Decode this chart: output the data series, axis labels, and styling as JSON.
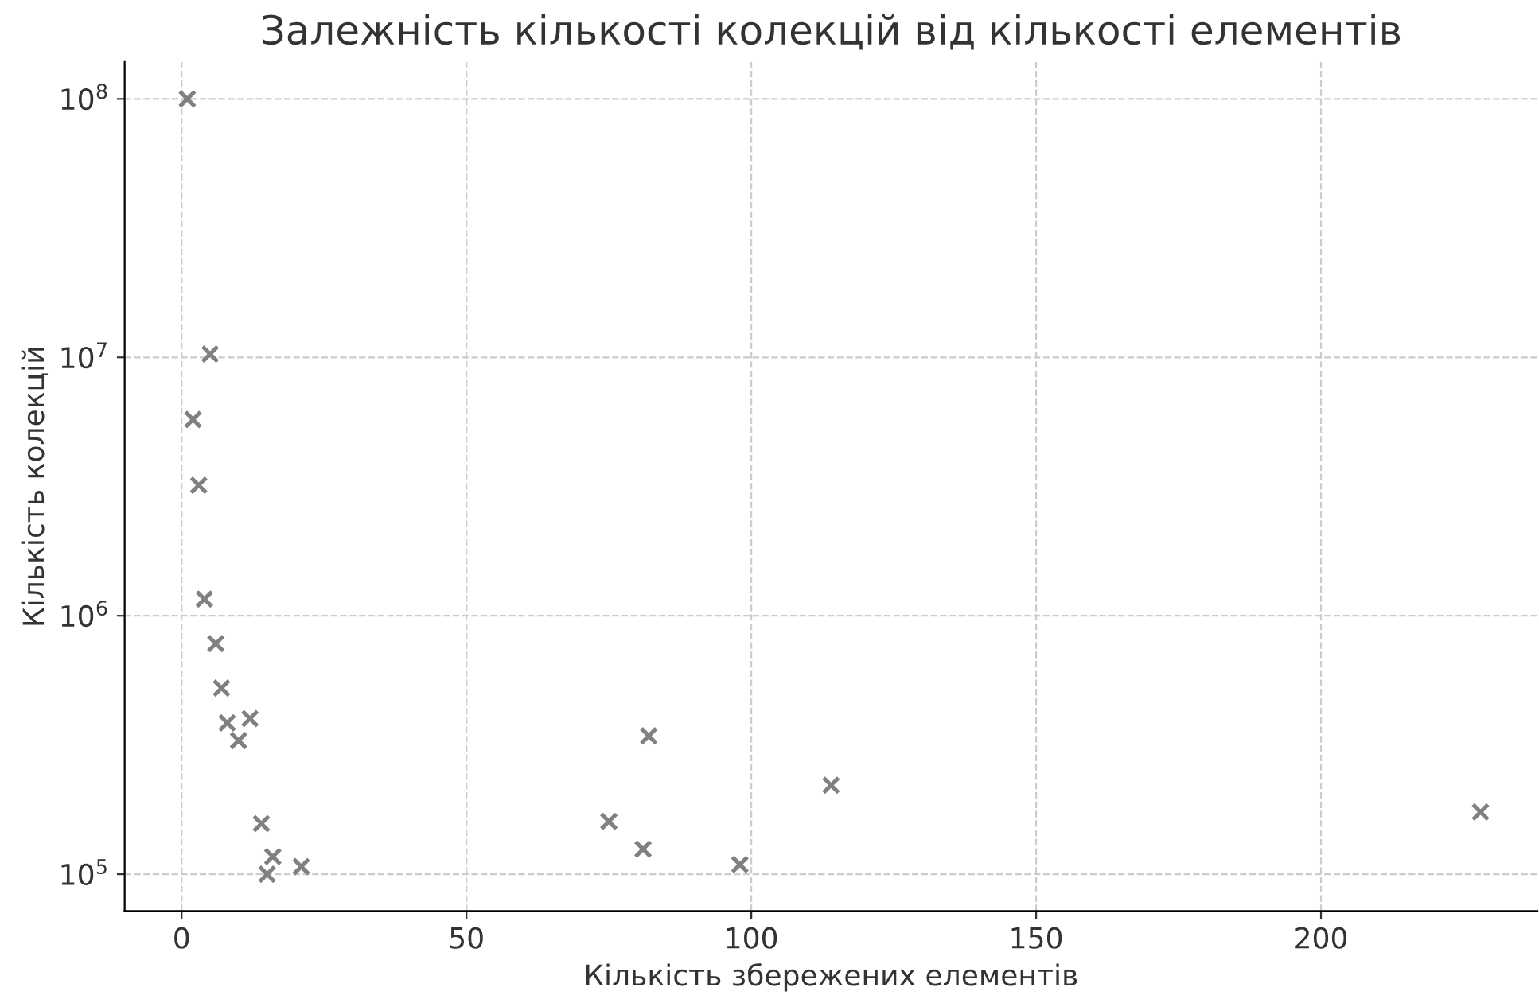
{
  "chart_data": {
    "type": "scatter",
    "title": "Залежність кількості колекцій від кількості елементів",
    "xlabel": "Кількість збережених елементів",
    "ylabel": "Кількість колекцій",
    "x": [
      1,
      5,
      2,
      3,
      4,
      6,
      7,
      8,
      10,
      12,
      14,
      15,
      16,
      21,
      75,
      81,
      82,
      98,
      114,
      228
    ],
    "series": [
      {
        "color": "#808080",
        "values": [
          100000000,
          10300000,
          5750000,
          3200000,
          1160000,
          780000,
          525000,
          385000,
          329000,
          400000,
          157000,
          100000,
          117000,
          107000,
          160000,
          125000,
          343000,
          109000,
          221000,
          174000
        ]
      }
    ],
    "log": "y",
    "marker": "cross",
    "grid": true,
    "legend": false,
    "xlim": [
      -10,
      238
    ],
    "xticks": [
      0,
      50,
      100,
      150,
      200
    ],
    "ylim": [
      72000,
      139000000
    ],
    "yticks": [
      {
        "value": 100000,
        "label": "10$^{5}$"
      },
      {
        "value": 1000000,
        "label": "10$^{6}$"
      },
      {
        "value": 10000000,
        "label": "10$^{7}$"
      },
      {
        "value": 100000000,
        "label": "10$^{8}$"
      }
    ]
  }
}
